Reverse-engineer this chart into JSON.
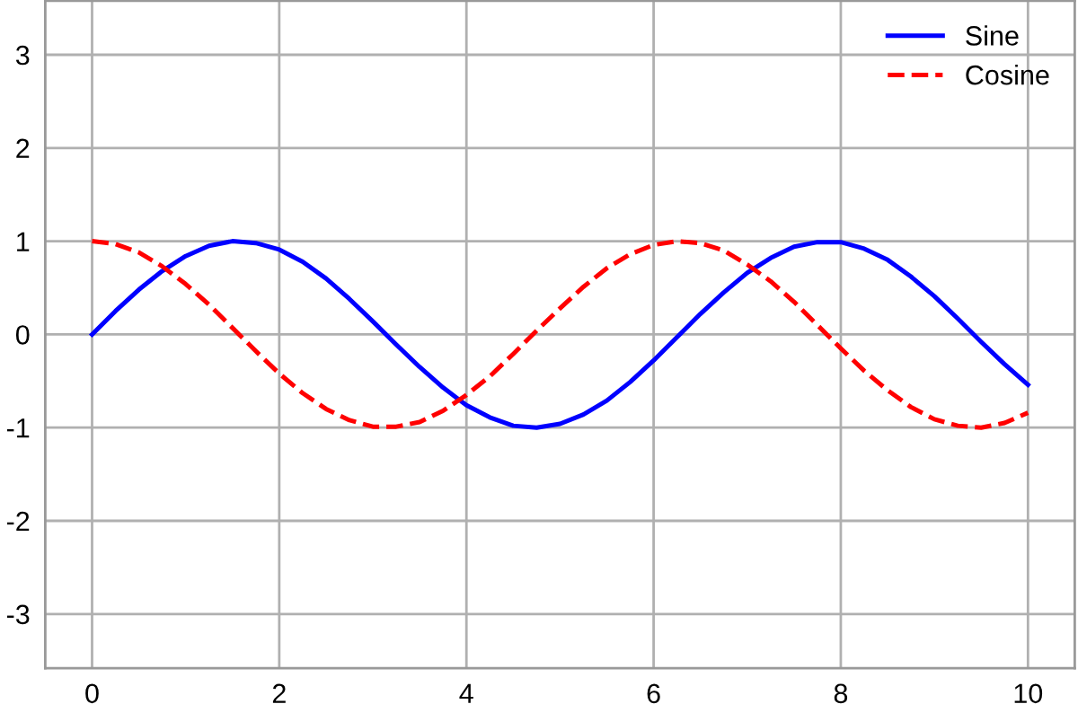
{
  "chart_data": {
    "type": "line",
    "x": [
      0,
      0.25,
      0.5,
      0.75,
      1,
      1.25,
      1.5,
      1.75,
      2,
      2.25,
      2.5,
      2.75,
      3,
      3.25,
      3.5,
      3.75,
      4,
      4.25,
      4.5,
      4.75,
      5,
      5.25,
      5.5,
      5.75,
      6,
      6.25,
      6.5,
      6.75,
      7,
      7.25,
      7.5,
      7.75,
      8,
      8.25,
      8.5,
      8.75,
      9,
      9.25,
      9.5,
      9.75,
      10
    ],
    "series": [
      {
        "name": "Sine",
        "color": "#0000ff",
        "line_style": "solid",
        "values": [
          0,
          0.25,
          0.48,
          0.68,
          0.84,
          0.95,
          1.0,
          0.98,
          0.91,
          0.78,
          0.6,
          0.38,
          0.14,
          -0.11,
          -0.35,
          -0.57,
          -0.76,
          -0.89,
          -0.98,
          -1.0,
          -0.96,
          -0.86,
          -0.71,
          -0.51,
          -0.28,
          -0.03,
          0.22,
          0.45,
          0.66,
          0.82,
          0.94,
          0.99,
          0.99,
          0.92,
          0.8,
          0.62,
          0.41,
          0.17,
          -0.08,
          -0.32,
          -0.54
        ]
      },
      {
        "name": "Cosine",
        "color": "#ff0000",
        "line_style": "dashed",
        "values": [
          1,
          0.97,
          0.88,
          0.73,
          0.54,
          0.32,
          0.07,
          -0.18,
          -0.42,
          -0.63,
          -0.8,
          -0.92,
          -0.99,
          -0.99,
          -0.94,
          -0.82,
          -0.65,
          -0.45,
          -0.21,
          0.04,
          0.28,
          0.51,
          0.71,
          0.86,
          0.96,
          1.0,
          0.98,
          0.9,
          0.75,
          0.57,
          0.35,
          0.1,
          -0.15,
          -0.39,
          -0.6,
          -0.78,
          -0.91,
          -0.98,
          -1.0,
          -0.95,
          -0.84
        ]
      }
    ],
    "xlim": [
      -0.5,
      10.5
    ],
    "ylim": [
      -3.58,
      3.58
    ],
    "xticks": [
      0,
      2,
      4,
      6,
      8,
      10
    ],
    "yticks": [
      -3,
      -2,
      -1,
      0,
      1,
      2,
      3
    ],
    "grid": true,
    "legend": "top right"
  }
}
